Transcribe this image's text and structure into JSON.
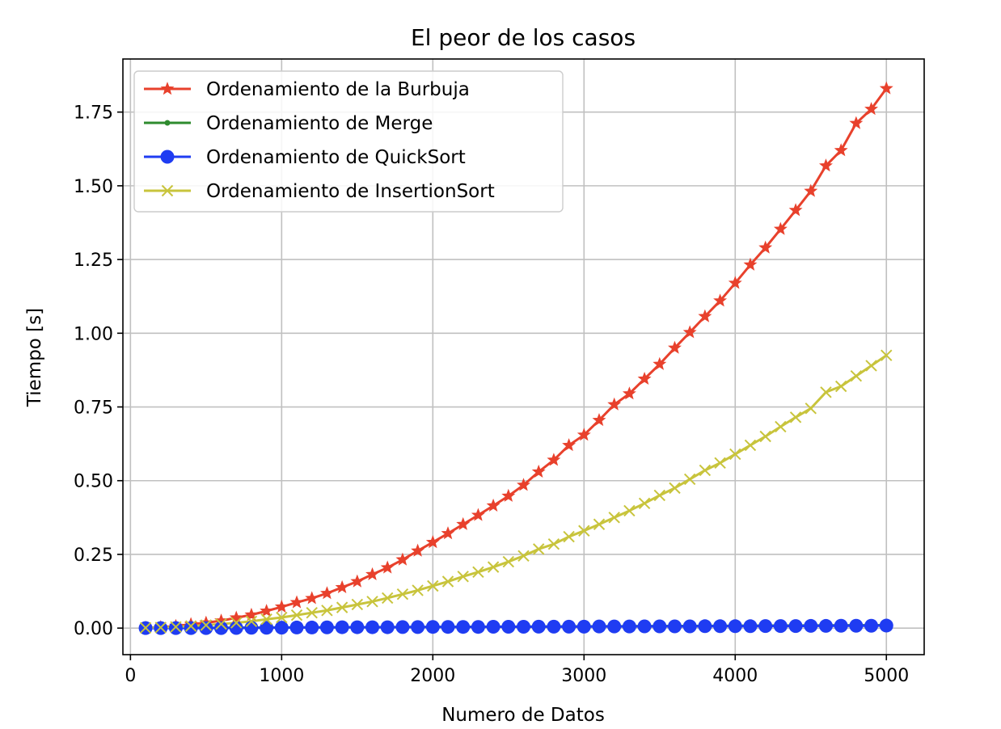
{
  "chart_data": {
    "type": "line",
    "title": "El peor de los casos",
    "xlabel": "Numero de Datos",
    "ylabel": "Tiempo [s]",
    "xlim": [
      -50,
      5250
    ],
    "ylim": [
      -0.09,
      1.93
    ],
    "xticks": [
      0,
      1000,
      2000,
      3000,
      4000,
      5000
    ],
    "xtick_labels": [
      "0",
      "1000",
      "2000",
      "3000",
      "4000",
      "5000"
    ],
    "yticks": [
      0.0,
      0.25,
      0.5,
      0.75,
      1.0,
      1.25,
      1.5,
      1.75
    ],
    "ytick_labels": [
      "0.00",
      "0.25",
      "0.50",
      "0.75",
      "1.00",
      "1.25",
      "1.50",
      "1.75"
    ],
    "grid": true,
    "legend_position": "upper-left",
    "x": [
      100,
      200,
      300,
      400,
      500,
      600,
      700,
      800,
      900,
      1000,
      1100,
      1200,
      1300,
      1400,
      1500,
      1600,
      1700,
      1800,
      1900,
      2000,
      2100,
      2200,
      2300,
      2400,
      2500,
      2600,
      2700,
      2800,
      2900,
      3000,
      3100,
      3200,
      3300,
      3400,
      3500,
      3600,
      3700,
      3800,
      3900,
      4000,
      4100,
      4200,
      4300,
      4400,
      4500,
      4600,
      4700,
      4800,
      4900,
      5000
    ],
    "series": [
      {
        "name": "Ordenamiento de la Burbuja",
        "color": "#e8412c",
        "marker": "star",
        "values": [
          0.001,
          0.003,
          0.007,
          0.013,
          0.018,
          0.025,
          0.035,
          0.045,
          0.058,
          0.072,
          0.087,
          0.101,
          0.118,
          0.138,
          0.158,
          0.182,
          0.205,
          0.232,
          0.262,
          0.291,
          0.321,
          0.352,
          0.383,
          0.415,
          0.448,
          0.485,
          0.53,
          0.57,
          0.62,
          0.655,
          0.705,
          0.758,
          0.795,
          0.845,
          0.895,
          0.95,
          1.003,
          1.057,
          1.11,
          1.17,
          1.232,
          1.29,
          1.353,
          1.417,
          1.482,
          1.568,
          1.62,
          1.712,
          1.76,
          1.83
        ]
      },
      {
        "name": "Ordenamiento de Merge",
        "color": "#2e8b2e",
        "marker": "point",
        "values": [
          0.0002,
          0.0004,
          0.0006,
          0.0008,
          0.001,
          0.0012,
          0.0014,
          0.0016,
          0.0018,
          0.002,
          0.0022,
          0.0024,
          0.0026,
          0.0028,
          0.003,
          0.0032,
          0.0034,
          0.0036,
          0.0038,
          0.004,
          0.0042,
          0.0044,
          0.0046,
          0.0048,
          0.005,
          0.0052,
          0.0054,
          0.0056,
          0.0058,
          0.006,
          0.0062,
          0.0064,
          0.0066,
          0.0068,
          0.007,
          0.0072,
          0.0074,
          0.0076,
          0.0078,
          0.008,
          0.0082,
          0.0084,
          0.0086,
          0.0088,
          0.009,
          0.0092,
          0.0094,
          0.0096,
          0.0098,
          0.01
        ]
      },
      {
        "name": "Ordenamiento de QuickSort",
        "color": "#1f3cf2",
        "marker": "circle",
        "values": [
          0.0,
          0.0,
          0.0,
          0.0,
          0.0,
          0.0,
          0.0005,
          0.001,
          0.001,
          0.0015,
          0.002,
          0.002,
          0.0025,
          0.003,
          0.003,
          0.003,
          0.003,
          0.0035,
          0.0035,
          0.004,
          0.004,
          0.004,
          0.004,
          0.0045,
          0.0045,
          0.0045,
          0.005,
          0.005,
          0.005,
          0.005,
          0.0055,
          0.0055,
          0.0055,
          0.006,
          0.006,
          0.006,
          0.006,
          0.0065,
          0.0065,
          0.0065,
          0.0065,
          0.007,
          0.007,
          0.007,
          0.0075,
          0.0075,
          0.008,
          0.008,
          0.008,
          0.0085
        ]
      },
      {
        "name": "Ordenamiento de InsertionSort",
        "color": "#c8c43c",
        "marker": "x",
        "values": [
          0.001,
          0.002,
          0.004,
          0.007,
          0.01,
          0.014,
          0.018,
          0.023,
          0.03,
          0.036,
          0.044,
          0.052,
          0.06,
          0.07,
          0.08,
          0.09,
          0.102,
          0.115,
          0.128,
          0.143,
          0.158,
          0.175,
          0.19,
          0.207,
          0.225,
          0.245,
          0.268,
          0.285,
          0.31,
          0.33,
          0.352,
          0.375,
          0.398,
          0.423,
          0.45,
          0.475,
          0.505,
          0.535,
          0.56,
          0.59,
          0.62,
          0.65,
          0.683,
          0.715,
          0.745,
          0.8,
          0.82,
          0.855,
          0.89,
          0.925
        ]
      }
    ]
  }
}
